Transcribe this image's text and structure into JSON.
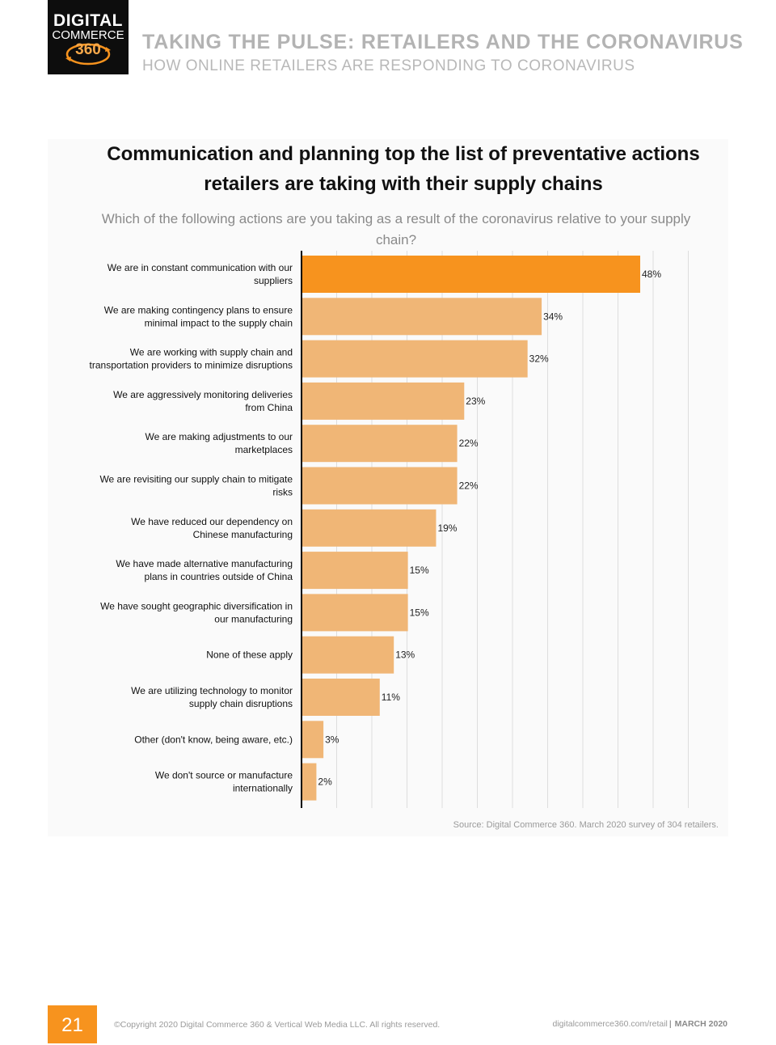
{
  "logo": {
    "line1": "DIGITAL",
    "line2": "COMMERCE",
    "line3": "360"
  },
  "header": {
    "title": "TAKING THE PULSE: RETAILERS AND THE CORONAVIRUS",
    "subtitle": "HOW ONLINE RETAILERS ARE RESPONDING TO CORONAVIRUS"
  },
  "colors": {
    "highlight": "#f7931e",
    "bar": "#f0b676",
    "accent": "#f7931e",
    "axis": "#000000",
    "grid": "#dddddd"
  },
  "chart_data": {
    "type": "bar",
    "orientation": "horizontal",
    "title_lines": [
      "Communication and planning top the list of preventative actions",
      "retailers are taking with their supply chains"
    ],
    "subtitle_lines": [
      "Which of the following actions are you taking as a result of the coronavirus relative to your supply",
      "chain?"
    ],
    "categories": [
      [
        "We are in constant communication with our",
        "suppliers"
      ],
      [
        "We are making contingency plans to ensure",
        "minimal impact to the supply chain"
      ],
      [
        "We are working with supply chain and",
        "transportation providers to minimize disruptions"
      ],
      [
        "We are aggressively monitoring deliveries",
        "from China"
      ],
      [
        "We are making adjustments to our",
        "marketplaces"
      ],
      [
        "We are revisiting our supply chain to mitigate",
        "risks"
      ],
      [
        "We have reduced our dependency on",
        "Chinese manufacturing"
      ],
      [
        "We have made alternative manufacturing",
        "plans in countries outside of China"
      ],
      [
        "We have sought geographic diversification in",
        "our manufacturing"
      ],
      [
        "None of these apply"
      ],
      [
        "We are utilizing technology to monitor",
        "supply chain disruptions"
      ],
      [
        "Other (don't know, being aware, etc.)"
      ],
      [
        "We don't source or manufacture",
        "internationally"
      ]
    ],
    "values": [
      48,
      34,
      32,
      23,
      22,
      22,
      19,
      15,
      15,
      13,
      11,
      3,
      2
    ],
    "value_labels": [
      "48%",
      "34%",
      "32%",
      "23%",
      "22%",
      "22%",
      "19%",
      "15%",
      "15%",
      "13%",
      "11%",
      "3%",
      "2%"
    ],
    "highlight_index": 0,
    "xlim": [
      0,
      55
    ],
    "grid": true,
    "legend": "none"
  },
  "source": "Source: Digital Commerce 360. March 2020 survey of 304 retailers.",
  "footer": {
    "page_number": "21",
    "copyright": "©Copyright 2020 Digital Commerce 360 & Vertical Web Media LLC. All rights reserved.",
    "url": "digitalcommerce360.com/retail",
    "separator": "|",
    "date": "MARCH 2020"
  }
}
